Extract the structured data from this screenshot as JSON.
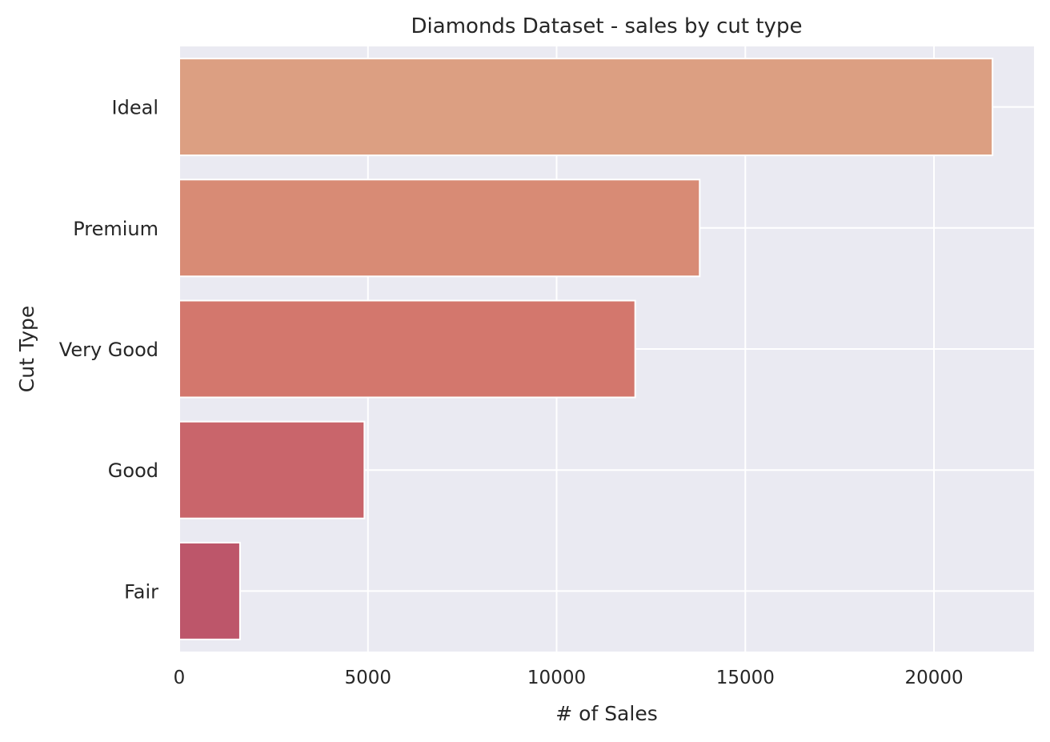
{
  "chart_data": {
    "type": "bar",
    "orientation": "horizontal",
    "title": "Diamonds Dataset - sales by cut type",
    "xlabel": "# of Sales",
    "ylabel": "Cut Type",
    "xlim": [
      0,
      22650
    ],
    "x_ticks": [
      0,
      5000,
      10000,
      15000,
      20000
    ],
    "x_tick_labels": [
      "0",
      "5000",
      "10000",
      "15000",
      "20000"
    ],
    "categories": [
      "Ideal",
      "Premium",
      "Very Good",
      "Good",
      "Fair"
    ],
    "values": [
      21551,
      13791,
      12082,
      4906,
      1610
    ],
    "colors": [
      "#dc9f82",
      "#d88b75",
      "#d3776d",
      "#c9656b",
      "#bd566a"
    ],
    "grid": true,
    "background_color": "#eaeaf2",
    "grid_color": "#ffffff",
    "legend": "none"
  }
}
